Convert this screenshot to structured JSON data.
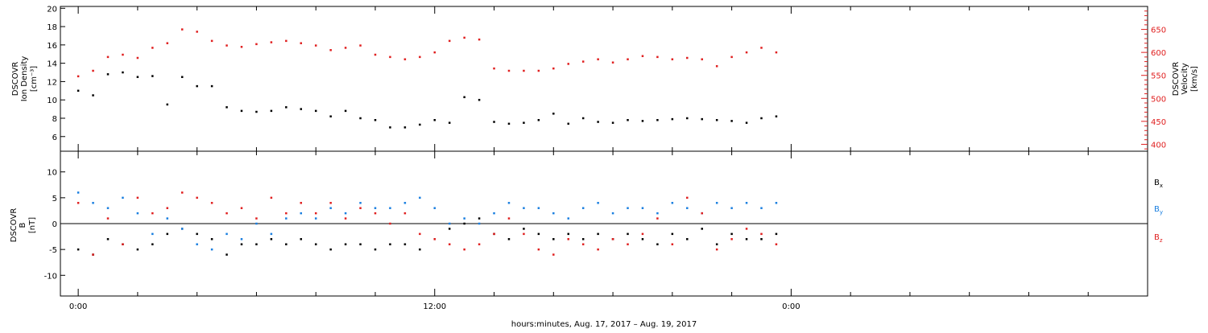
{
  "chart_data": [
    {
      "type": "scatter",
      "panel": "top",
      "ylabel_left": [
        "DSCOVR",
        "Ion Density",
        "[cm⁻³]"
      ],
      "ylabel_right": [
        "DSCOVR",
        "Velocity",
        "[km/s]"
      ],
      "y_left_ticks": [
        6,
        8,
        10,
        12,
        14,
        16,
        18,
        20
      ],
      "y_left_range": [
        4.4,
        20.2
      ],
      "y_right_ticks": [
        400,
        450,
        500,
        550,
        600,
        650
      ],
      "y_right_range": [
        385,
        700
      ],
      "x_range_hours": [
        -0.6,
        36.0
      ],
      "colors": {
        "density": "#000000",
        "velocity": "#e02020"
      },
      "series": [
        {
          "name": "",
          "axis": "left",
          "color": "#000000",
          "x": [
            0.0,
            0.5,
            1.0,
            1.5,
            2.0,
            2.5,
            3.0,
            3.5,
            4.0,
            4.5,
            5.0,
            5.5,
            6.0,
            6.5,
            7.0,
            7.5,
            8.0,
            8.5,
            9.0,
            9.5,
            10.0,
            10.5,
            11.0,
            11.5,
            12.0,
            12.5,
            13.0,
            13.5,
            14.0,
            14.5,
            15.0,
            15.5,
            16.0,
            16.5,
            17.0,
            17.5,
            18.0,
            18.5,
            19.0,
            19.5,
            20.0,
            20.5,
            21.0,
            21.5,
            22.0,
            22.5,
            23.0,
            23.5
          ],
          "y": [
            11,
            10.5,
            12.8,
            13,
            12.5,
            12.6,
            9.5,
            12.5,
            11.5,
            11.5,
            9.2,
            8.8,
            8.7,
            8.8,
            9.2,
            9.0,
            8.8,
            8.2,
            8.8,
            8.0,
            7.8,
            7.0,
            7.0,
            7.3,
            7.8,
            7.5,
            10.3,
            10.0,
            7.6,
            7.4,
            7.5,
            7.8,
            8.5,
            7.4,
            8.0,
            7.6,
            7.5,
            7.8,
            7.7,
            7.8,
            7.9,
            8.0,
            7.9,
            7.8,
            7.7,
            7.5,
            8.0,
            8.2
          ]
        },
        {
          "name": "",
          "axis": "right",
          "color": "#e02020",
          "x": [
            0.0,
            0.5,
            1.0,
            1.5,
            2.0,
            2.5,
            3.0,
            3.5,
            4.0,
            4.5,
            5.0,
            5.5,
            6.0,
            6.5,
            7.0,
            7.5,
            8.0,
            8.5,
            9.0,
            9.5,
            10.0,
            10.5,
            11.0,
            11.5,
            12.0,
            12.5,
            13.0,
            13.5,
            14.0,
            14.5,
            15.0,
            15.5,
            16.0,
            16.5,
            17.0,
            17.5,
            18.0,
            18.5,
            19.0,
            19.5,
            20.0,
            20.5,
            21.0,
            21.5,
            22.0,
            22.5,
            23.0,
            23.5
          ],
          "y": [
            548,
            560,
            590,
            595,
            588,
            610,
            620,
            650,
            645,
            625,
            615,
            612,
            618,
            622,
            625,
            620,
            615,
            605,
            610,
            615,
            595,
            590,
            585,
            590,
            600,
            625,
            632,
            628,
            565,
            560,
            560,
            560,
            565,
            575,
            580,
            585,
            578,
            585,
            592,
            590,
            585,
            588,
            585,
            570,
            590,
            600,
            610,
            600
          ]
        }
      ]
    },
    {
      "type": "scatter",
      "panel": "bottom",
      "ylabel_left": [
        "DSCOVR",
        "B",
        "[nT]"
      ],
      "y_ticks": [
        -10,
        -5,
        0,
        5,
        10
      ],
      "y_range": [
        -14,
        14
      ],
      "x_range_hours": [
        -0.6,
        36.0
      ],
      "colors": {
        "Bx": "#000000",
        "By": "#1a7fe0",
        "Bz": "#e02020"
      },
      "legend": [
        {
          "label": "B",
          "sub": "x",
          "color": "#000000"
        },
        {
          "label": "B",
          "sub": "y",
          "color": "#1a7fe0"
        },
        {
          "label": "B",
          "sub": "z",
          "color": "#e02020"
        }
      ],
      "series": [
        {
          "name": "Bx",
          "color": "#000000",
          "x": [
            0.0,
            0.5,
            1.0,
            1.5,
            2.0,
            2.5,
            3.0,
            3.5,
            4.0,
            4.5,
            5.0,
            5.5,
            6.0,
            6.5,
            7.0,
            7.5,
            8.0,
            8.5,
            9.0,
            9.5,
            10.0,
            10.5,
            11.0,
            11.5,
            12.0,
            12.5,
            13.0,
            13.5,
            14.0,
            14.5,
            15.0,
            15.5,
            16.0,
            16.5,
            17.0,
            17.5,
            18.0,
            18.5,
            19.0,
            19.5,
            20.0,
            20.5,
            21.0,
            21.5,
            22.0,
            22.5,
            23.0,
            23.5
          ],
          "y": [
            -5,
            -6,
            -3,
            -4,
            -5,
            -4,
            -2,
            -1,
            -2,
            -3,
            -6,
            -4,
            -4,
            -3,
            -4,
            -3,
            -4,
            -5,
            -4,
            -4,
            -5,
            -4,
            -4,
            -5,
            -3,
            -1,
            0,
            1,
            -2,
            -3,
            -1,
            -2,
            -3,
            -2,
            -3,
            -2,
            -3,
            -2,
            -3,
            -4,
            -2,
            -3,
            -1,
            -4,
            -2,
            -3,
            -3,
            -2
          ]
        },
        {
          "name": "By",
          "color": "#1a7fe0",
          "x": [
            0.0,
            0.5,
            1.0,
            1.5,
            2.0,
            2.5,
            3.0,
            3.5,
            4.0,
            4.5,
            5.0,
            5.5,
            6.0,
            6.5,
            7.0,
            7.5,
            8.0,
            8.5,
            9.0,
            9.5,
            10.0,
            10.5,
            11.0,
            11.5,
            12.0,
            12.5,
            13.0,
            13.5,
            14.0,
            14.5,
            15.0,
            15.5,
            16.0,
            16.5,
            17.0,
            17.5,
            18.0,
            18.5,
            19.0,
            19.5,
            20.0,
            20.5,
            21.0,
            21.5,
            22.0,
            22.5,
            23.0,
            23.5
          ],
          "y": [
            6,
            4,
            3,
            5,
            2,
            -2,
            1,
            -1,
            -4,
            -5,
            -2,
            -3,
            0,
            -2,
            1,
            2,
            1,
            3,
            2,
            4,
            3,
            3,
            4,
            5,
            3,
            0,
            1,
            0,
            2,
            4,
            3,
            3,
            2,
            1,
            3,
            4,
            2,
            3,
            3,
            2,
            4,
            3,
            2,
            4,
            3,
            4,
            3,
            4
          ]
        },
        {
          "name": "Bz",
          "color": "#e02020",
          "x": [
            0.0,
            0.5,
            1.0,
            1.5,
            2.0,
            2.5,
            3.0,
            3.5,
            4.0,
            4.5,
            5.0,
            5.5,
            6.0,
            6.5,
            7.0,
            7.5,
            8.0,
            8.5,
            9.0,
            9.5,
            10.0,
            10.5,
            11.0,
            11.5,
            12.0,
            12.5,
            13.0,
            13.5,
            14.0,
            14.5,
            15.0,
            15.5,
            16.0,
            16.5,
            17.0,
            17.5,
            18.0,
            18.5,
            19.0,
            19.5,
            20.0,
            20.5,
            21.0,
            21.5,
            22.0,
            22.5,
            23.0,
            23.5
          ],
          "y": [
            4,
            -6,
            1,
            -4,
            5,
            2,
            3,
            6,
            5,
            4,
            2,
            3,
            1,
            5,
            2,
            4,
            2,
            4,
            1,
            3,
            2,
            0,
            2,
            -2,
            -3,
            -4,
            -5,
            -4,
            -2,
            1,
            -2,
            -5,
            -6,
            -3,
            -4,
            -5,
            -3,
            -4,
            -2,
            1,
            -4,
            5,
            2,
            -5,
            -3,
            -1,
            -2,
            -4
          ]
        }
      ]
    }
  ],
  "x_axis": {
    "major_ticks": [
      {
        "hour": 0,
        "label": "0:00"
      },
      {
        "hour": 12,
        "label": "12:00"
      },
      {
        "hour": 24,
        "label": "0:00"
      }
    ],
    "minor_tick_step_hours": 2,
    "xlabel": "hours:minutes, Aug. 17, 2017 – Aug. 19, 2017"
  }
}
